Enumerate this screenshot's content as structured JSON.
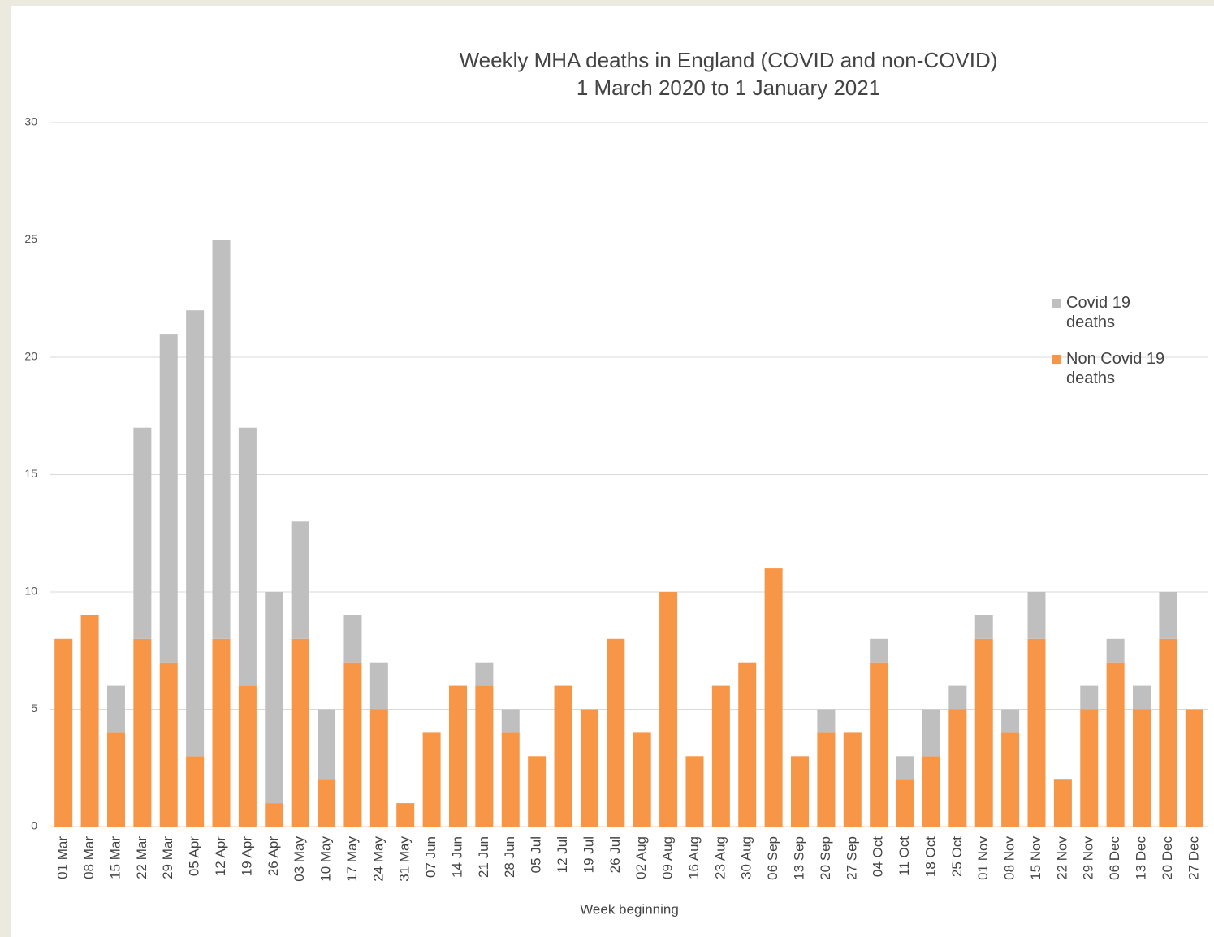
{
  "chart_data": {
    "type": "stacked_bar",
    "title": "Weekly MHA deaths in England (COVID and non-COVID)",
    "subtitle": "1 March 2020 to 1 January 2021",
    "x_label": "Week beginning",
    "categories": [
      "01 Mar",
      "08 Mar",
      "15 Mar",
      "22 Mar",
      "29 Mar",
      "05 Apr",
      "12 Apr",
      "19 Apr",
      "26 Apr",
      "03 May",
      "10 May",
      "17 May",
      "24 May",
      "31 May",
      "07 Jun",
      "14 Jun",
      "21 Jun",
      "28 Jun",
      "05 Jul",
      "12 Jul",
      "19 Jul",
      "26 Jul",
      "02 Aug",
      "09 Aug",
      "16 Aug",
      "23 Aug",
      "30 Aug",
      "06 Sep",
      "13 Sep",
      "20 Sep",
      "27 Sep",
      "04 Oct",
      "11 Oct",
      "18 Oct",
      "25 Oct",
      "01 Nov",
      "08 Nov",
      "15 Nov",
      "22 Nov",
      "29 Nov",
      "06 Dec",
      "13 Dec",
      "20 Dec",
      "27 Dec"
    ],
    "series": [
      {
        "name": "Covid 19 deaths",
        "color": "#bfbfbf",
        "values": [
          0,
          0,
          2,
          9,
          14,
          19,
          17,
          11,
          9,
          5,
          3,
          2,
          2,
          0,
          0,
          0,
          1,
          1,
          0,
          0,
          0,
          0,
          0,
          0,
          0,
          0,
          0,
          0,
          0,
          1,
          0,
          1,
          1,
          2,
          1,
          1,
          1,
          2,
          0,
          1,
          1,
          1,
          2,
          0
        ]
      },
      {
        "name": "Non Covid 19 deaths",
        "color": "#f79646",
        "values": [
          8,
          9,
          4,
          8,
          7,
          3,
          8,
          6,
          1,
          8,
          2,
          7,
          5,
          1,
          4,
          6,
          6,
          4,
          3,
          6,
          5,
          8,
          4,
          10,
          3,
          6,
          7,
          11,
          3,
          4,
          4,
          7,
          2,
          3,
          5,
          8,
          4,
          8,
          2,
          5,
          7,
          5,
          8,
          5
        ]
      }
    ],
    "ylim": [
      0,
      30
    ],
    "yticks": [
      0,
      5,
      10,
      15,
      20,
      25,
      30
    ],
    "grid": true,
    "legend": "right"
  }
}
